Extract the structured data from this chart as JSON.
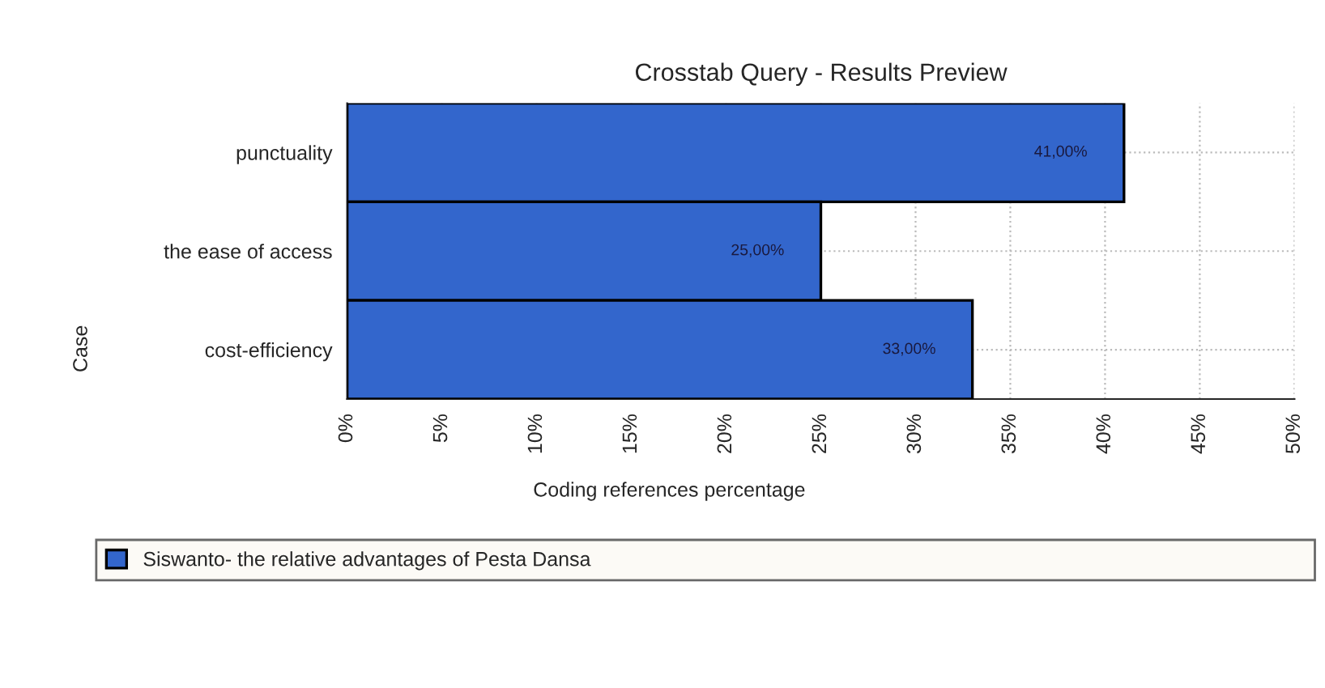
{
  "chart_data": {
    "type": "bar",
    "orientation": "horizontal",
    "title": "Crosstab Query - Results Preview",
    "xlabel": "Coding references percentage",
    "ylabel": "Case",
    "categories": [
      "punctuality",
      "the ease of access",
      "cost-efficiency"
    ],
    "series": [
      {
        "name": "Siswanto- the relative advantages of Pesta Dansa",
        "color": "#3366cc",
        "values": [
          41,
          25,
          33
        ],
        "value_labels": [
          "41,00%",
          "25,00%",
          "33,00%"
        ]
      }
    ],
    "xlim": [
      0,
      50
    ],
    "xticks": [
      {
        "value": 0,
        "label": "0%"
      },
      {
        "value": 5,
        "label": "5%"
      },
      {
        "value": 10,
        "label": "10%"
      },
      {
        "value": 15,
        "label": "15%"
      },
      {
        "value": 20,
        "label": "20%"
      },
      {
        "value": 25,
        "label": "25%"
      },
      {
        "value": 30,
        "label": "30%"
      },
      {
        "value": 35,
        "label": "35%"
      },
      {
        "value": 40,
        "label": "40%"
      },
      {
        "value": 45,
        "label": "45%"
      },
      {
        "value": 50,
        "label": "50%"
      }
    ],
    "grid": true,
    "legend": "bottom"
  }
}
